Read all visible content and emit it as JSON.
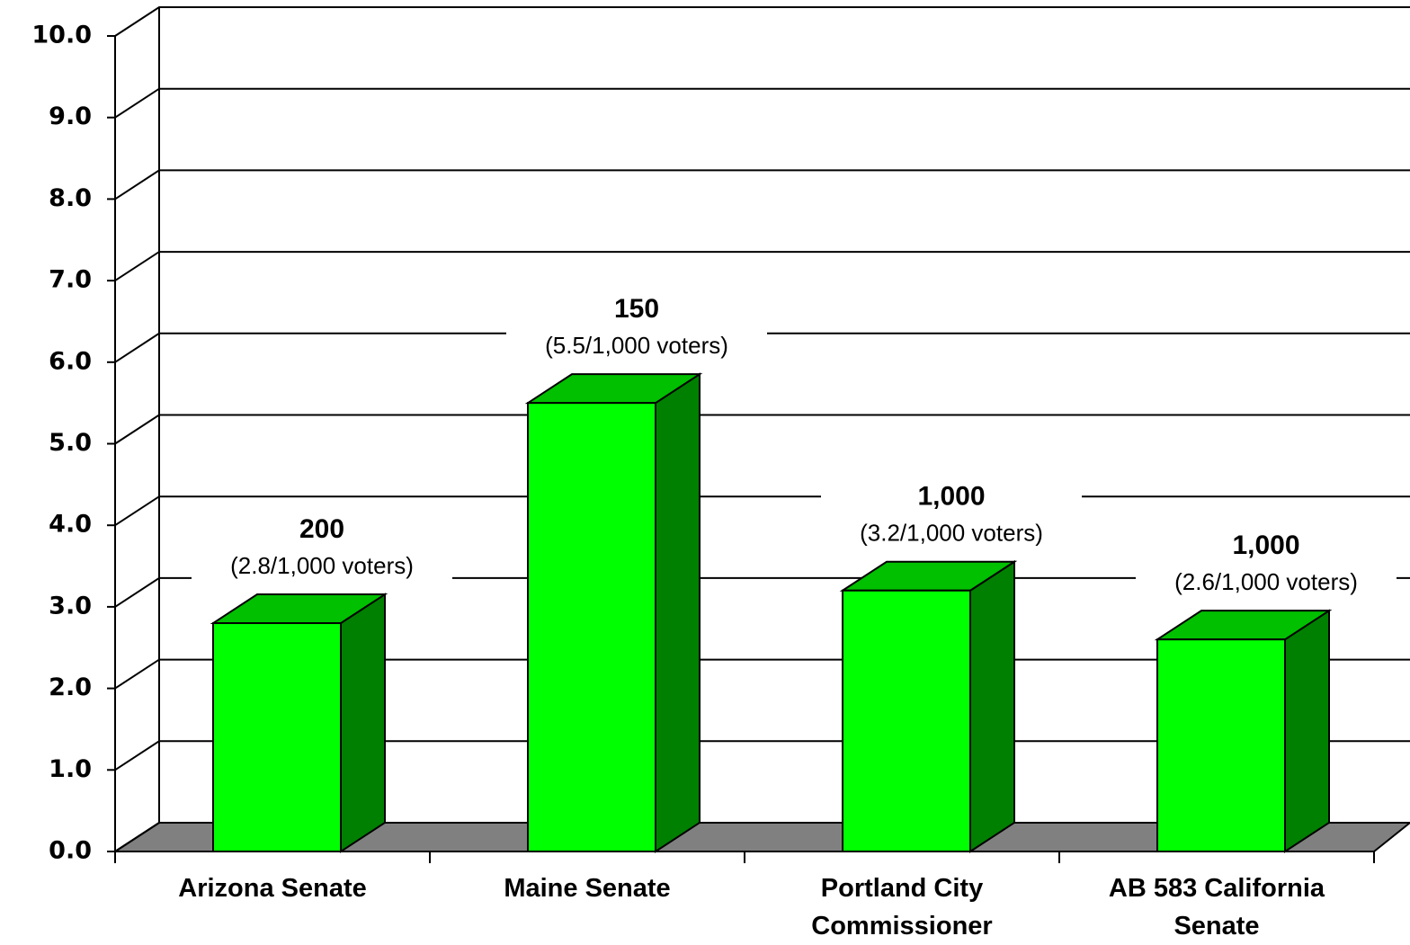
{
  "chart_data": {
    "type": "bar3d",
    "categories": [
      "Arizona Senate",
      "Maine Senate",
      "Portland City Commissioner",
      "AB 583 California Senate"
    ],
    "values": [
      2.8,
      5.5,
      3.2,
      2.6
    ],
    "value_labels": [
      "(2.8/1,000 voters)",
      "(5.5/1,000 voters)",
      "(3.2/1,000 voters)",
      "(2.6/1,000 voters)"
    ],
    "annotations": [
      "200",
      "150",
      "1,000",
      "1,000"
    ],
    "color": "#00ff00",
    "top_color": "#00c000",
    "side_color": "#008000",
    "floor_color": "#808080",
    "ylim": [
      0,
      10
    ],
    "yticks": [
      {
        "value": 0,
        "label": "0.0"
      },
      {
        "value": 1,
        "label": "1.0"
      },
      {
        "value": 2,
        "label": "2.0"
      },
      {
        "value": 3,
        "label": "3.0"
      },
      {
        "value": 4,
        "label": "4.0"
      },
      {
        "value": 5,
        "label": "5.0"
      },
      {
        "value": 6,
        "label": "6.0"
      },
      {
        "value": 7,
        "label": "7.0"
      },
      {
        "value": 8,
        "label": "8.0"
      },
      {
        "value": 9,
        "label": "9.0"
      },
      {
        "value": 10,
        "label": "10.0"
      }
    ],
    "grid": true
  }
}
